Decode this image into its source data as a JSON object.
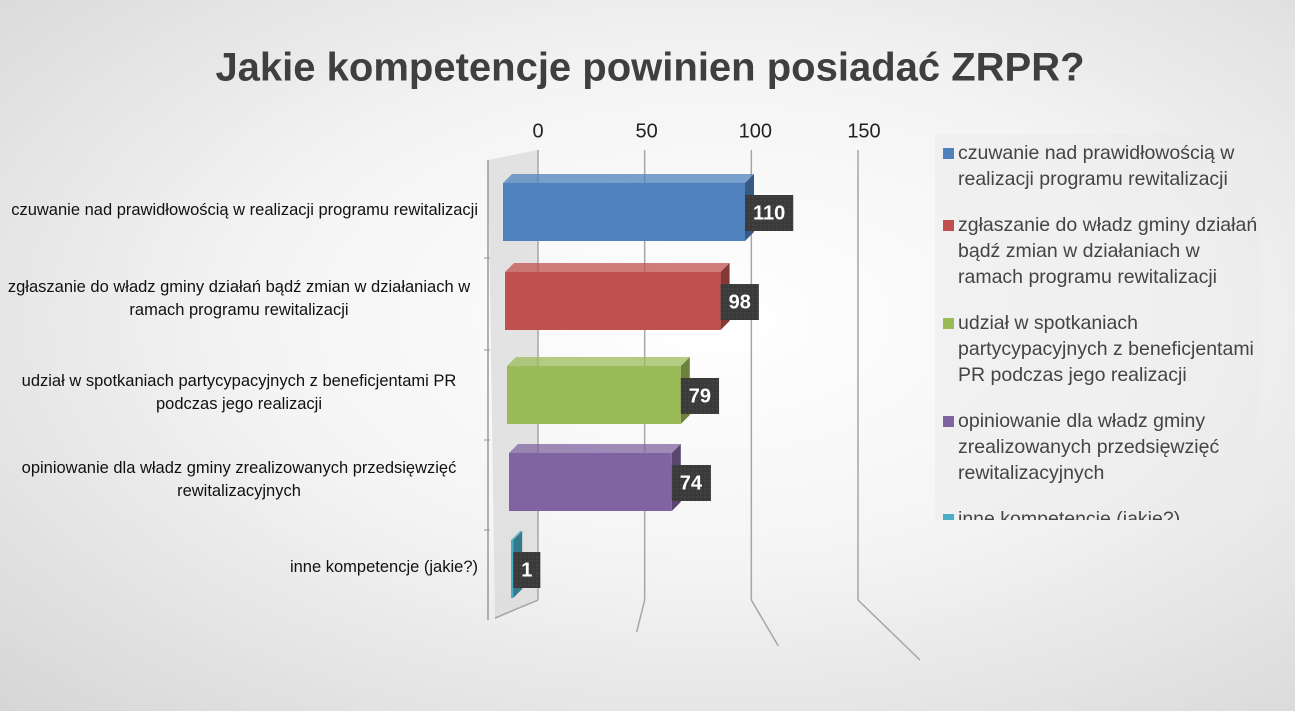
{
  "chart_data": {
    "type": "bar3d_horizontal",
    "title": "Jakie kompetencje powinien posiadać ZRPR?",
    "categories": [
      "czuwanie nad prawidłowością w realizacji programu rewitalizacji",
      "zgłaszanie do władz gminy działań bądź zmian w działaniach w ramach programu rewitalizacji",
      "udział w spotkaniach partycypacyjnych z beneficjentami PR podczas jego realizacji",
      "opiniowanie dla władz gminy zrealizowanych przedsięwzięć rewitalizacyjnych",
      "inne kompetencje (jakie?)"
    ],
    "values": [
      110,
      98,
      79,
      74,
      1
    ],
    "colors": [
      "#4f81bd",
      "#c0504d",
      "#9bbb59",
      "#8064a2",
      "#4bacc6"
    ],
    "xlim": [
      0,
      150
    ],
    "xticks": [
      0,
      50,
      100,
      150
    ],
    "grid": true,
    "legend": "right"
  }
}
